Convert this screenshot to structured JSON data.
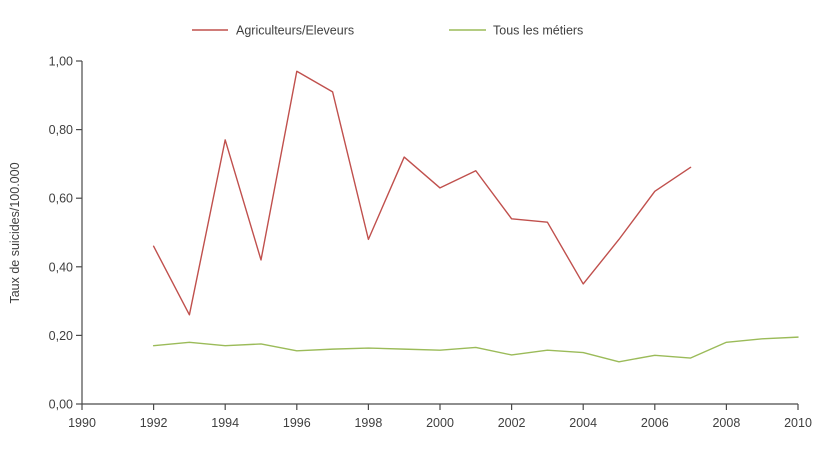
{
  "colors": {
    "agriculteurs": "#C0504D",
    "tous_metiers": "#9BBB59",
    "axis": "#4a4a4a",
    "text": "#3f3f3f",
    "background": "#ffffff"
  },
  "legend": {
    "position": "top",
    "items": [
      {
        "label": "Agriculteurs/Eleveurs",
        "color": "#C0504D"
      },
      {
        "label": "Tous les métiers",
        "color": "#9BBB59"
      }
    ]
  },
  "chart_data": {
    "type": "line",
    "title": "",
    "xlabel": "",
    "ylabel": "Taux de suicides/100.000",
    "xlim": [
      1990,
      2010
    ],
    "ylim": [
      0.0,
      1.0
    ],
    "grid": false,
    "legend_position": "top",
    "xticks": [
      1990,
      1992,
      1994,
      1996,
      1998,
      2000,
      2002,
      2004,
      2006,
      2008,
      2010
    ],
    "yticks": [
      0.0,
      0.2,
      0.4,
      0.6,
      0.8,
      1.0
    ],
    "ytick_labels": [
      "0,00",
      "0,20",
      "0,40",
      "0,60",
      "0,80",
      "1,00"
    ],
    "series": [
      {
        "name": "Agriculteurs/Eleveurs",
        "color": "#C0504D",
        "x": [
          1992,
          1993,
          1994,
          1995,
          1996,
          1997,
          1998,
          1999,
          2000,
          2001,
          2002,
          2003,
          2004,
          2005,
          2006,
          2007
        ],
        "values": [
          0.46,
          0.26,
          0.77,
          0.42,
          0.97,
          0.91,
          0.48,
          0.72,
          0.63,
          0.68,
          0.54,
          0.53,
          0.35,
          0.48,
          0.62,
          0.69
        ]
      },
      {
        "name": "Tous les métiers",
        "color": "#9BBB59",
        "x": [
          1992,
          1993,
          1994,
          1995,
          1996,
          1997,
          1998,
          1999,
          2000,
          2001,
          2002,
          2003,
          2004,
          2005,
          2006,
          2007,
          2008,
          2009,
          2010
        ],
        "values": [
          0.17,
          0.18,
          0.17,
          0.175,
          0.155,
          0.16,
          0.163,
          0.16,
          0.157,
          0.165,
          0.143,
          0.157,
          0.15,
          0.123,
          0.142,
          0.134,
          0.18,
          0.19,
          0.195
        ]
      }
    ]
  }
}
